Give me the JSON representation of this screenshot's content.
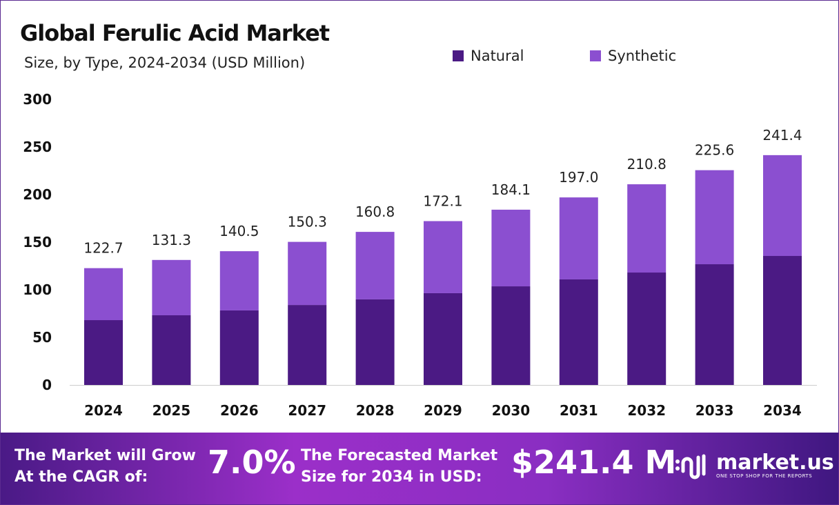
{
  "chart_data": {
    "type": "bar",
    "stacked": true,
    "title": "Global Ferulic Acid Market",
    "subtitle": "Size, by Type, 2024-2034 (USD Million)",
    "categories": [
      "2024",
      "2025",
      "2026",
      "2027",
      "2028",
      "2029",
      "2030",
      "2031",
      "2032",
      "2033",
      "2034"
    ],
    "series": [
      {
        "name": "Natural",
        "color": "#4b1a84",
        "values": [
          68.1,
          73.2,
          78.3,
          84.0,
          89.9,
          96.4,
          103.6,
          110.9,
          118.1,
          126.8,
          135.5
        ]
      },
      {
        "name": "Synthetic",
        "color": "#8b4fd0",
        "values": [
          54.6,
          58.1,
          62.2,
          66.3,
          70.9,
          75.7,
          80.5,
          86.1,
          92.7,
          98.8,
          105.9
        ]
      }
    ],
    "totals": [
      "122.7",
      "131.3",
      "140.5",
      "150.3",
      "160.8",
      "172.1",
      "184.1",
      "197.0",
      "210.8",
      "225.6",
      "241.4"
    ],
    "ylim": [
      0,
      300
    ],
    "yticks": [
      "0",
      "50",
      "100",
      "150",
      "200",
      "250",
      "300"
    ],
    "grid": false,
    "legend": "top-right"
  },
  "footer": {
    "cagr_label_1": "The Market will Grow",
    "cagr_label_2": "At the CAGR of:",
    "cagr_value": "7.0%",
    "forecast_label_1": "The Forecasted Market",
    "forecast_label_2": "Size for 2034 in USD:",
    "forecast_value": "$241.4 M",
    "logo_name": "market.us",
    "logo_tagline": "ONE STOP SHOP FOR THE REPORTS"
  }
}
